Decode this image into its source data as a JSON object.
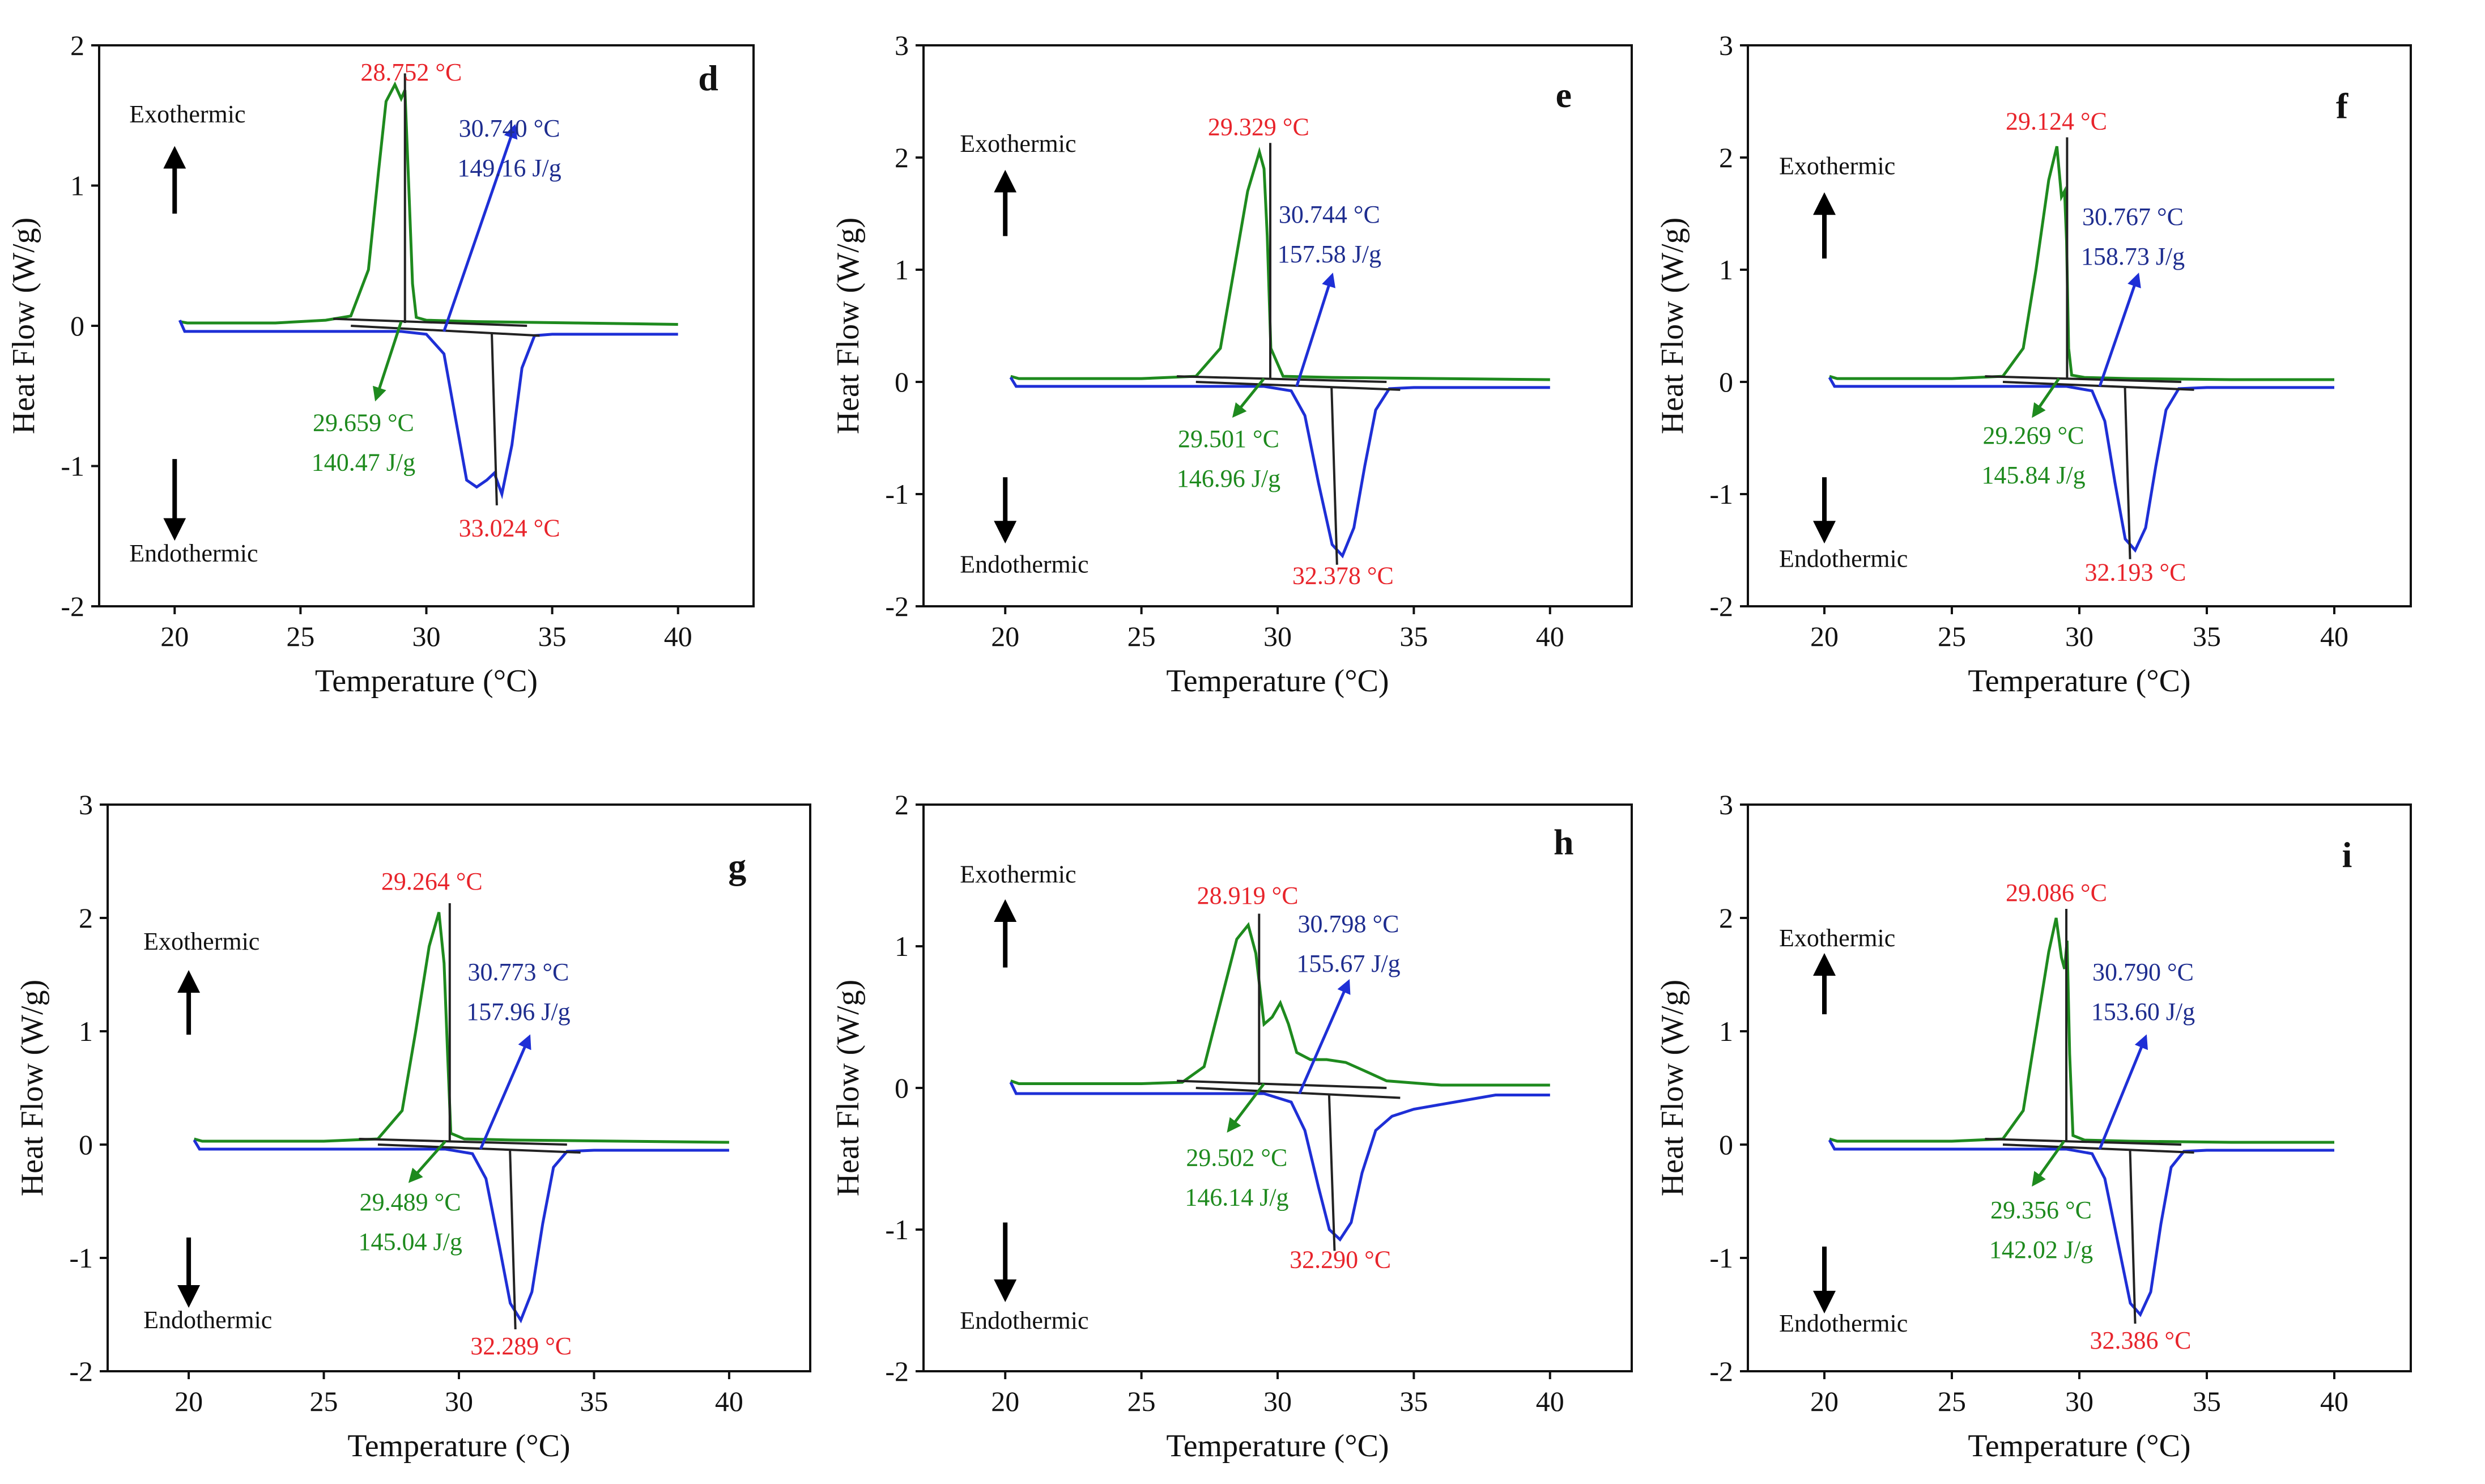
{
  "chart_data": [
    {
      "type": "line",
      "panel": "d",
      "xlabel": "Temperature (°C)",
      "ylabel": "Heat Flow (W/g)",
      "xlim": [
        17,
        43
      ],
      "ylim": [
        -2,
        2
      ],
      "xticks": [
        20,
        25,
        30,
        35,
        40
      ],
      "yticks": [
        -2,
        -1,
        0,
        1,
        2
      ],
      "exo_label": "Exothermic",
      "endo_label": "Endothermic",
      "cooling_peak": "28.752 °C",
      "heating_peak": "33.024 °C",
      "cooling_onset": "29.659 °C",
      "cooling_enthalpy": "140.47 J/g",
      "heating_onset": "30.740 °C",
      "heating_enthalpy": "149.16 J/g",
      "series": [
        {
          "name": "cooling",
          "color": "#1e8a1e",
          "x": [
            20.2,
            20.5,
            24,
            26,
            27,
            27.7,
            28.1,
            28.4,
            28.75,
            29.0,
            29.15,
            29.3,
            29.45,
            29.6,
            30,
            32,
            36,
            40
          ],
          "y": [
            0.03,
            0.02,
            0.02,
            0.04,
            0.07,
            0.4,
            1.1,
            1.6,
            1.72,
            1.62,
            1.68,
            1.0,
            0.3,
            0.06,
            0.04,
            0.03,
            0.02,
            0.01
          ]
        },
        {
          "name": "heating",
          "color": "#1e2fd6",
          "x": [
            20.2,
            20.4,
            25,
            29,
            30,
            30.7,
            31.2,
            31.6,
            32.0,
            32.4,
            32.7,
            33.0,
            33.4,
            33.8,
            34.3,
            35,
            40
          ],
          "y": [
            0.04,
            -0.04,
            -0.04,
            -0.04,
            -0.06,
            -0.2,
            -0.7,
            -1.1,
            -1.15,
            -1.1,
            -1.05,
            -1.2,
            -0.85,
            -0.3,
            -0.07,
            -0.06,
            -0.06
          ]
        }
      ]
    },
    {
      "type": "line",
      "panel": "e",
      "xlabel": "Temperature (°C)",
      "ylabel": "Heat Flow (W/g)",
      "xlim": [
        17,
        43
      ],
      "ylim": [
        -2,
        3
      ],
      "xticks": [
        20,
        25,
        30,
        35,
        40
      ],
      "yticks": [
        -2,
        -1,
        0,
        1,
        2,
        3
      ],
      "exo_label": "Exothermic",
      "endo_label": "Endothermic",
      "cooling_peak": "29.329 °C",
      "heating_peak": "32.378 °C",
      "cooling_onset": "29.501 °C",
      "cooling_enthalpy": "146.96 J/g",
      "heating_onset": "30.744 °C",
      "heating_enthalpy": "157.58 J/g",
      "series": [
        {
          "name": "cooling",
          "color": "#1e8a1e",
          "x": [
            20.2,
            20.5,
            25,
            27,
            27.9,
            28.4,
            28.9,
            29.33,
            29.5,
            29.62,
            29.75,
            30.2,
            32,
            36,
            40
          ],
          "y": [
            0.05,
            0.03,
            0.03,
            0.05,
            0.3,
            1.0,
            1.7,
            2.05,
            1.9,
            1.3,
            0.3,
            0.05,
            0.04,
            0.03,
            0.02
          ]
        },
        {
          "name": "heating",
          "color": "#1e2fd6",
          "x": [
            20.2,
            20.4,
            25,
            29.5,
            30.5,
            31.0,
            31.5,
            32.0,
            32.38,
            32.8,
            33.2,
            33.6,
            34.1,
            35,
            40
          ],
          "y": [
            0.04,
            -0.04,
            -0.04,
            -0.04,
            -0.08,
            -0.3,
            -0.9,
            -1.45,
            -1.55,
            -1.3,
            -0.75,
            -0.25,
            -0.06,
            -0.05,
            -0.05
          ]
        }
      ]
    },
    {
      "type": "line",
      "panel": "f",
      "xlabel": "Temperature (°C)",
      "ylabel": "Heat Flow (W/g)",
      "xlim": [
        17,
        43
      ],
      "ylim": [
        -2,
        3
      ],
      "xticks": [
        20,
        25,
        30,
        35,
        40
      ],
      "yticks": [
        -2,
        -1,
        0,
        1,
        2,
        3
      ],
      "exo_label": "Exothermic",
      "endo_label": "Endothermic",
      "cooling_peak": "29.124 °C",
      "heating_peak": "32.193 °C",
      "cooling_onset": "29.269 °C",
      "cooling_enthalpy": "145.84 J/g",
      "heating_onset": "30.767 °C",
      "heating_enthalpy": "158.73 J/g",
      "series": [
        {
          "name": "cooling",
          "color": "#1e8a1e",
          "x": [
            20.2,
            20.5,
            25,
            27,
            27.8,
            28.3,
            28.8,
            29.12,
            29.3,
            29.42,
            29.5,
            29.58,
            29.7,
            30.2,
            32,
            36,
            40
          ],
          "y": [
            0.05,
            0.03,
            0.03,
            0.05,
            0.3,
            1.0,
            1.8,
            2.1,
            1.65,
            1.7,
            1.25,
            0.3,
            0.06,
            0.04,
            0.03,
            0.02,
            0.02
          ]
        },
        {
          "name": "heating",
          "color": "#1e2fd6",
          "x": [
            20.2,
            20.4,
            25,
            29.5,
            30.5,
            31.0,
            31.4,
            31.8,
            32.19,
            32.6,
            33.0,
            33.4,
            33.9,
            35,
            40
          ],
          "y": [
            0.04,
            -0.04,
            -0.04,
            -0.04,
            -0.08,
            -0.35,
            -0.9,
            -1.4,
            -1.5,
            -1.3,
            -0.75,
            -0.25,
            -0.06,
            -0.05,
            -0.05
          ]
        }
      ]
    },
    {
      "type": "line",
      "panel": "g",
      "xlabel": "Temperature (°C)",
      "ylabel": "Heat Flow (W/g)",
      "xlim": [
        17,
        43
      ],
      "ylim": [
        -2,
        3
      ],
      "xticks": [
        20,
        25,
        30,
        35,
        40
      ],
      "yticks": [
        -2,
        -1,
        0,
        1,
        2,
        3
      ],
      "exo_label": "Exothermic",
      "endo_label": "Endothermic",
      "cooling_peak": "29.264 °C",
      "heating_peak": "32.289 °C",
      "cooling_onset": "29.489 °C",
      "cooling_enthalpy": "145.04 J/g",
      "heating_onset": "30.773 °C",
      "heating_enthalpy": "157.96 J/g",
      "series": [
        {
          "name": "cooling",
          "color": "#1e8a1e",
          "x": [
            20.2,
            20.5,
            25,
            27,
            27.9,
            28.4,
            28.9,
            29.26,
            29.45,
            29.58,
            29.7,
            30.2,
            32,
            36,
            40
          ],
          "y": [
            0.05,
            0.03,
            0.03,
            0.05,
            0.3,
            1.0,
            1.75,
            2.05,
            1.6,
            0.8,
            0.1,
            0.05,
            0.04,
            0.03,
            0.02
          ]
        },
        {
          "name": "heating",
          "color": "#1e2fd6",
          "x": [
            20.2,
            20.4,
            25,
            29.5,
            30.5,
            31.0,
            31.5,
            31.9,
            32.29,
            32.7,
            33.1,
            33.5,
            34.0,
            35,
            40
          ],
          "y": [
            0.04,
            -0.04,
            -0.04,
            -0.04,
            -0.08,
            -0.3,
            -0.9,
            -1.4,
            -1.55,
            -1.3,
            -0.7,
            -0.2,
            -0.06,
            -0.05,
            -0.05
          ]
        }
      ]
    },
    {
      "type": "line",
      "panel": "h",
      "xlabel": "Temperature (°C)",
      "ylabel": "Heat Flow (W/g)",
      "xlim": [
        17,
        43
      ],
      "ylim": [
        -2,
        2
      ],
      "xticks": [
        20,
        25,
        30,
        35,
        40
      ],
      "yticks": [
        -2,
        -1,
        0,
        1,
        2
      ],
      "exo_label": "Exothermic",
      "endo_label": "Endothermic",
      "cooling_peak": "28.919 °C",
      "heating_peak": "32.290 °C",
      "cooling_onset": "29.502 °C",
      "cooling_enthalpy": "146.14 J/g",
      "heating_onset": "30.798 °C",
      "heating_enthalpy": "155.67 J/g",
      "series": [
        {
          "name": "cooling",
          "color": "#1e8a1e",
          "x": [
            20.2,
            20.5,
            25,
            26.5,
            27.3,
            27.9,
            28.5,
            28.92,
            29.2,
            29.5,
            29.8,
            30.1,
            30.4,
            30.7,
            31.2,
            31.8,
            32.5,
            33.2,
            34,
            36,
            40
          ],
          "y": [
            0.05,
            0.03,
            0.03,
            0.04,
            0.15,
            0.6,
            1.05,
            1.15,
            0.95,
            0.45,
            0.5,
            0.6,
            0.45,
            0.25,
            0.2,
            0.2,
            0.18,
            0.12,
            0.05,
            0.02,
            0.02
          ]
        },
        {
          "name": "heating",
          "color": "#1e2fd6",
          "x": [
            20.2,
            20.4,
            25,
            29.5,
            30.5,
            31.0,
            31.5,
            31.9,
            32.29,
            32.7,
            33.1,
            33.6,
            34.2,
            35,
            36.5,
            38,
            40
          ],
          "y": [
            0.04,
            -0.04,
            -0.04,
            -0.04,
            -0.1,
            -0.3,
            -0.7,
            -1.0,
            -1.07,
            -0.95,
            -0.6,
            -0.3,
            -0.2,
            -0.15,
            -0.1,
            -0.05,
            -0.05
          ]
        }
      ]
    },
    {
      "type": "line",
      "panel": "i",
      "xlabel": "Temperature (°C)",
      "ylabel": "Heat Flow (W/g)",
      "xlim": [
        17,
        43
      ],
      "ylim": [
        -2,
        3
      ],
      "xticks": [
        20,
        25,
        30,
        35,
        40
      ],
      "yticks": [
        -2,
        -1,
        0,
        1,
        2,
        3
      ],
      "exo_label": "Exothermic",
      "endo_label": "Endothermic",
      "cooling_peak": "29.086 °C",
      "heating_peak": "32.386 °C",
      "cooling_onset": "29.356 °C",
      "cooling_enthalpy": "142.02 J/g",
      "heating_onset": "30.790 °C",
      "heating_enthalpy": "153.60 J/g",
      "series": [
        {
          "name": "cooling",
          "color": "#1e8a1e",
          "x": [
            20.2,
            20.5,
            25,
            27,
            27.8,
            28.3,
            28.8,
            29.09,
            29.3,
            29.42,
            29.52,
            29.62,
            29.75,
            30.2,
            32,
            36,
            40
          ],
          "y": [
            0.05,
            0.03,
            0.03,
            0.05,
            0.3,
            1.0,
            1.7,
            2.0,
            1.65,
            1.55,
            1.8,
            0.8,
            0.08,
            0.04,
            0.03,
            0.02,
            0.02
          ]
        },
        {
          "name": "heating",
          "color": "#1e2fd6",
          "x": [
            20.2,
            20.4,
            25,
            29.5,
            30.5,
            31.0,
            31.5,
            32.0,
            32.39,
            32.8,
            33.2,
            33.6,
            34.1,
            35,
            40
          ],
          "y": [
            0.04,
            -0.04,
            -0.04,
            -0.04,
            -0.08,
            -0.3,
            -0.85,
            -1.4,
            -1.5,
            -1.3,
            -0.7,
            -0.2,
            -0.06,
            -0.05,
            -0.05
          ]
        }
      ]
    }
  ]
}
